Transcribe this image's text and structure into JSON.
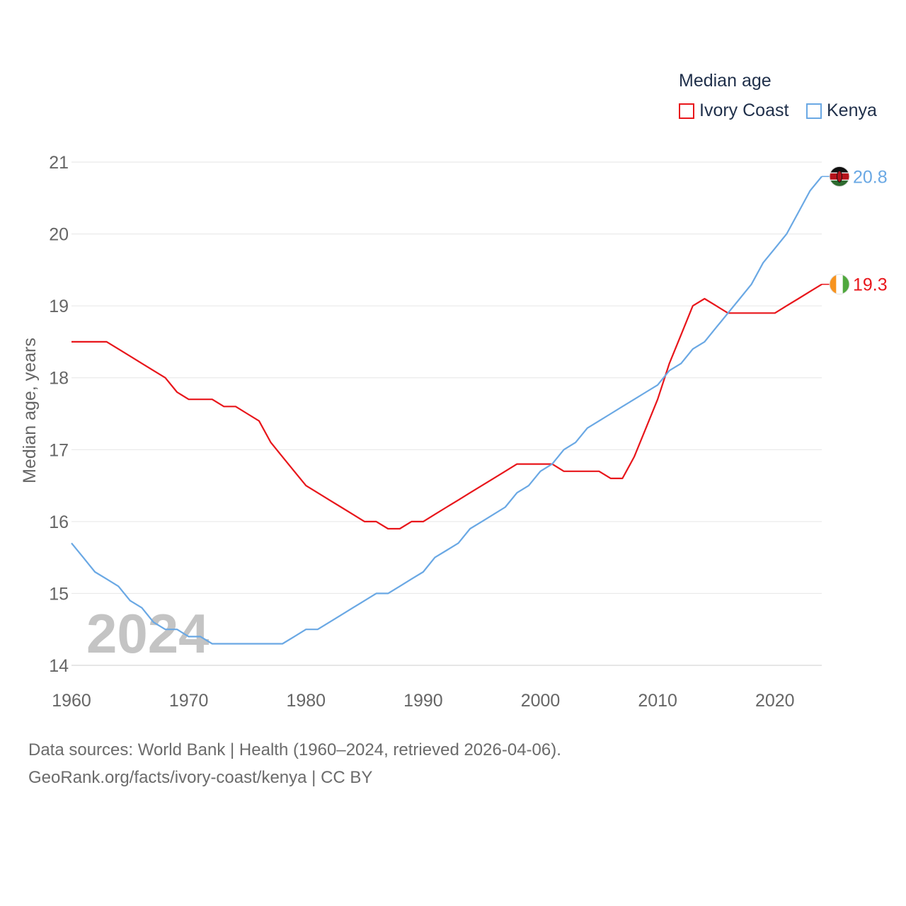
{
  "legend": {
    "title": "Median age",
    "items": [
      {
        "label": "Ivory Coast",
        "color": "#e8161b"
      },
      {
        "label": "Kenya",
        "color": "#6aa8e4"
      }
    ]
  },
  "footer": {
    "line1": "Data sources: World Bank | Health (1960–2024, retrieved 2026-04-06).",
    "line2": "GeoRank.org/facts/ivory-coast/kenya | CC BY"
  },
  "chart_data": {
    "type": "line",
    "title": "Median age",
    "ylabel": "Median age, years",
    "xlabel": "",
    "year_label": "2024",
    "xlim": [
      1960,
      2024
    ],
    "ylim": [
      14,
      21
    ],
    "x_ticks": [
      1960,
      1970,
      1980,
      1990,
      2000,
      2010,
      2020
    ],
    "y_ticks": [
      14,
      15,
      16,
      17,
      18,
      19,
      20,
      21
    ],
    "x": [
      1960,
      1961,
      1962,
      1963,
      1964,
      1965,
      1966,
      1967,
      1968,
      1969,
      1970,
      1971,
      1972,
      1973,
      1974,
      1975,
      1976,
      1977,
      1978,
      1979,
      1980,
      1981,
      1982,
      1983,
      1984,
      1985,
      1986,
      1987,
      1988,
      1989,
      1990,
      1991,
      1992,
      1993,
      1994,
      1995,
      1996,
      1997,
      1998,
      1999,
      2000,
      2001,
      2002,
      2003,
      2004,
      2005,
      2006,
      2007,
      2008,
      2009,
      2010,
      2011,
      2012,
      2013,
      2014,
      2015,
      2016,
      2017,
      2018,
      2019,
      2020,
      2021,
      2022,
      2023,
      2024
    ],
    "series": [
      {
        "name": "Ivory Coast",
        "color": "#e8161b",
        "end_label": "19.3",
        "values": [
          18.5,
          18.5,
          18.5,
          18.5,
          18.4,
          18.3,
          18.2,
          18.1,
          18.0,
          17.8,
          17.7,
          17.7,
          17.7,
          17.6,
          17.6,
          17.5,
          17.4,
          17.1,
          16.9,
          16.7,
          16.5,
          16.4,
          16.3,
          16.2,
          16.1,
          16.0,
          16.0,
          15.9,
          15.9,
          16.0,
          16.0,
          16.1,
          16.2,
          16.3,
          16.4,
          16.5,
          16.6,
          16.7,
          16.8,
          16.8,
          16.8,
          16.8,
          16.7,
          16.7,
          16.7,
          16.7,
          16.6,
          16.6,
          16.9,
          17.3,
          17.7,
          18.2,
          18.6,
          19.0,
          19.1,
          19.0,
          18.9,
          18.9,
          18.9,
          18.9,
          18.9,
          19.0,
          19.1,
          19.2,
          19.3
        ]
      },
      {
        "name": "Kenya",
        "color": "#6aa8e4",
        "end_label": "20.8",
        "values": [
          15.7,
          15.5,
          15.3,
          15.2,
          15.1,
          14.9,
          14.8,
          14.6,
          14.5,
          14.5,
          14.4,
          14.4,
          14.3,
          14.3,
          14.3,
          14.3,
          14.3,
          14.3,
          14.3,
          14.4,
          14.5,
          14.5,
          14.6,
          14.7,
          14.8,
          14.9,
          15.0,
          15.0,
          15.1,
          15.2,
          15.3,
          15.5,
          15.6,
          15.7,
          15.9,
          16.0,
          16.1,
          16.2,
          16.4,
          16.5,
          16.7,
          16.8,
          17.0,
          17.1,
          17.3,
          17.4,
          17.5,
          17.6,
          17.7,
          17.8,
          17.9,
          18.1,
          18.2,
          18.4,
          18.5,
          18.7,
          18.9,
          19.1,
          19.3,
          19.6,
          19.8,
          20.0,
          20.3,
          20.6,
          20.8
        ]
      }
    ]
  }
}
